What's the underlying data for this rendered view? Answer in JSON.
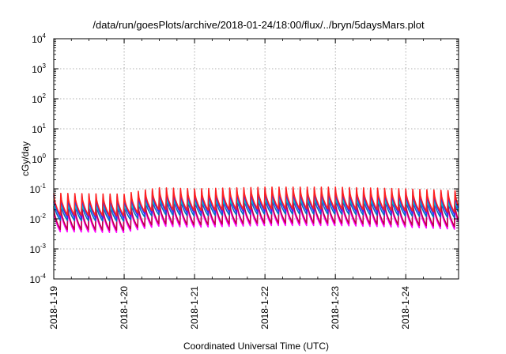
{
  "chart_data": {
    "type": "line",
    "title": "/data/run/goesPlots/archive/2018-01-24/18:00/flux/../bryn/5daysMars.plot",
    "xlabel": "Coordinated Universal Time (UTC)",
    "ylabel": "cGy/day",
    "yscale": "log",
    "ylim": [
      0.0001,
      10000
    ],
    "y_ticks": [
      {
        "base": "10",
        "exp": "-4",
        "value": 0.0001
      },
      {
        "base": "10",
        "exp": "-3",
        "value": 0.001
      },
      {
        "base": "10",
        "exp": "-2",
        "value": 0.01
      },
      {
        "base": "10",
        "exp": "-1",
        "value": 0.1
      },
      {
        "base": "10",
        "exp": "0",
        "value": 1
      },
      {
        "base": "10",
        "exp": "1",
        "value": 10
      },
      {
        "base": "10",
        "exp": "2",
        "value": 100
      },
      {
        "base": "10",
        "exp": "3",
        "value": 1000
      },
      {
        "base": "10",
        "exp": "4",
        "value": 10000
      }
    ],
    "x_ticks": [
      "2018-1-19",
      "2018-1-20",
      "2018-1-21",
      "2018-1-22",
      "2018-1-23",
      "2018-1-24"
    ],
    "xlim": [
      "2018-01-19T00:00",
      "2018-01-24T18:00"
    ],
    "grid": true,
    "legend": "none",
    "sawtooth_period_hours": 2.4,
    "series": [
      {
        "color": "#ff00ff",
        "peak_approx": 0.03,
        "trough_approx": 0.005
      },
      {
        "color": "#c0004a",
        "peak_approx": 0.035,
        "trough_approx": 0.006
      },
      {
        "color": "#0070c0",
        "peak_approx": 0.05,
        "trough_approx": 0.012
      },
      {
        "color": "#00d0c0",
        "peak_approx": 0.04,
        "trough_approx": 0.02
      },
      {
        "color": "#3030ff",
        "peak_approx": 0.08,
        "trough_approx": 0.015
      },
      {
        "color": "#ff2020",
        "peak_approx": 0.095,
        "trough_approx": 0.018
      }
    ],
    "envelope": {
      "dates": [
        "2018-01-19",
        "2018-01-20",
        "2018-01-20T12:00",
        "2018-01-21",
        "2018-01-22",
        "2018-01-23",
        "2018-01-24",
        "2018-01-24T18:00"
      ],
      "factor": [
        0.75,
        0.7,
        1.15,
        1.05,
        1.2,
        1.2,
        1.05,
        0.9
      ]
    }
  }
}
